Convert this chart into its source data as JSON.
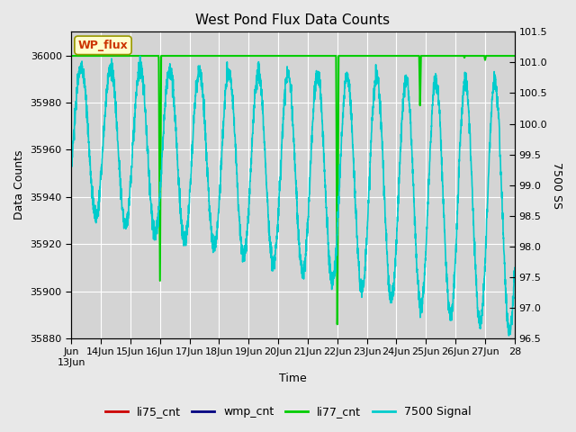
{
  "title": "West Pond Flux Data Counts",
  "xlabel": "Time",
  "ylabel_left": "Data Counts",
  "ylabel_right": "7500 SS",
  "ylim_left": [
    35880,
    36010
  ],
  "ylim_right": [
    96.5,
    101.5
  ],
  "fig_facecolor": "#e8e8e8",
  "ax_facecolor": "#d4d4d4",
  "grid_color": "#ffffff",
  "legend_labels": [
    "li75_cnt",
    "wmp_cnt",
    "li77_cnt",
    "7500 Signal"
  ],
  "legend_colors": [
    "#cc0000",
    "#000080",
    "#00cc00",
    "#00cccc"
  ],
  "wp_flux_label": "WP_flux",
  "wp_flux_color": "#cc3300",
  "wp_flux_bg": "#ffffcc",
  "wp_flux_border": "#999900",
  "x_tick_labels": [
    "Jun\n13Jun",
    "14Jun",
    "15Jun",
    "16Jun",
    "17Jun",
    "18Jun",
    "19Jun",
    "20Jun",
    "21Jun",
    "22Jun",
    "23Jun",
    "24Jun",
    "25Jun",
    "26Jun",
    "27Jun",
    "28"
  ],
  "x_tick_positions": [
    0,
    1,
    2,
    3,
    4,
    5,
    6,
    7,
    8,
    9,
    10,
    11,
    12,
    13,
    14,
    15
  ],
  "yticks_left": [
    35880,
    35900,
    35920,
    35940,
    35960,
    35980,
    36000
  ],
  "yticks_right": [
    96.5,
    97.0,
    97.5,
    98.0,
    98.5,
    99.0,
    99.5,
    100.0,
    100.5,
    101.0,
    101.5
  ],
  "cyan_linewidth": 1.2,
  "green_linewidth": 1.5,
  "title_fontsize": 11,
  "axis_fontsize": 9,
  "tick_fontsize": 8
}
